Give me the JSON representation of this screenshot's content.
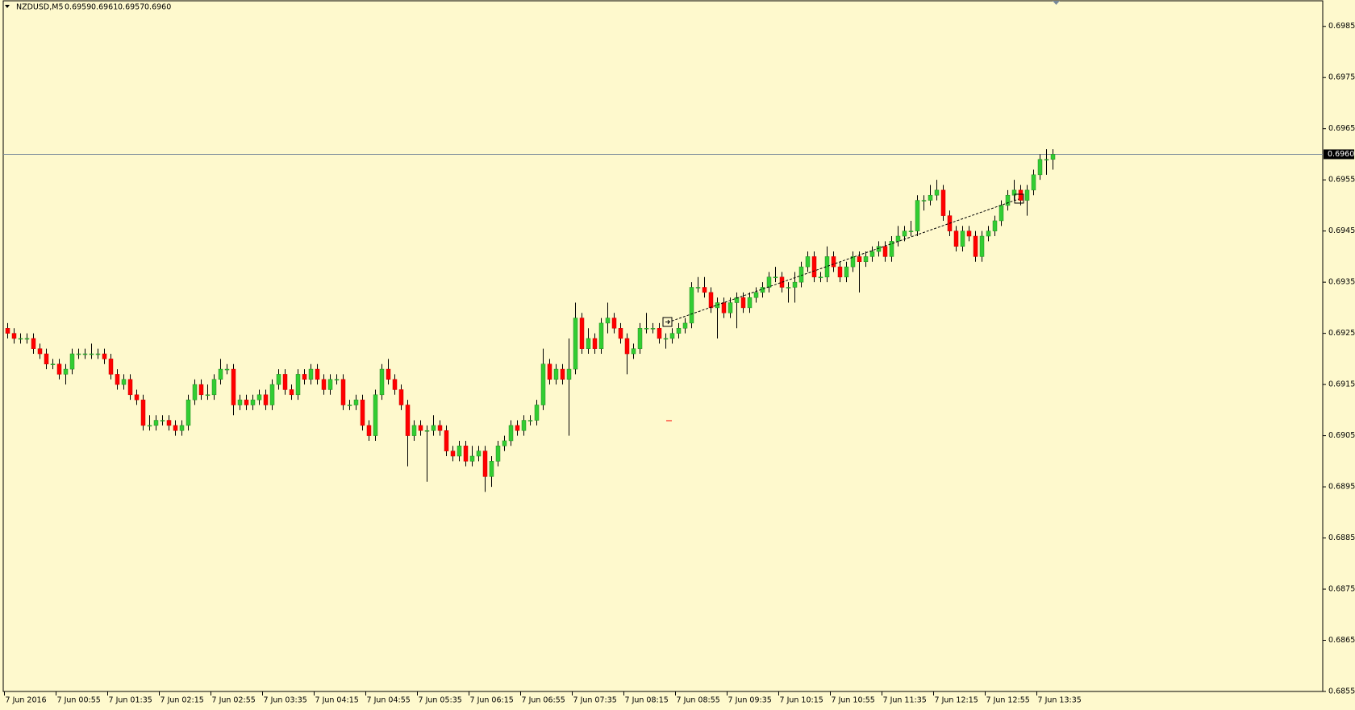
{
  "chart_data": {
    "type": "candlestick",
    "symbol": "NZDUSD,M5",
    "header_values": [
      "0.6959",
      "0.6961",
      "0.6957",
      "0.6960"
    ],
    "last_price": {
      "value": 0.696,
      "label": "0.6960"
    },
    "up_color": "#32cd32",
    "down_color": "#ff0000",
    "ylim": [
      0.6855,
      0.699
    ],
    "yticks": [
      0.6985,
      0.6975,
      0.6965,
      0.6955,
      0.6945,
      0.6935,
      0.6925,
      0.6915,
      0.6905,
      0.6895,
      0.6885,
      0.6875,
      0.6865,
      0.6855
    ],
    "xticks": [
      "7 Jun 2016",
      "7 Jun 00:55",
      "7 Jun 01:35",
      "7 Jun 02:15",
      "7 Jun 02:55",
      "7 Jun 03:35",
      "7 Jun 04:15",
      "7 Jun 04:55",
      "7 Jun 05:35",
      "7 Jun 06:15",
      "7 Jun 06:55",
      "7 Jun 07:35",
      "7 Jun 08:15",
      "7 Jun 08:55",
      "7 Jun 09:35",
      "7 Jun 10:15",
      "7 Jun 10:55",
      "7 Jun 11:35",
      "7 Jun 12:15",
      "7 Jun 12:55",
      "7 Jun 13:35"
    ],
    "candles": [
      [
        0.6926,
        0.6927,
        0.6924,
        0.6925
      ],
      [
        0.6925,
        0.6926,
        0.6923,
        0.6924
      ],
      [
        0.6924,
        0.6925,
        0.6923,
        0.6924
      ],
      [
        0.6924,
        0.6925,
        0.6923,
        0.6924
      ],
      [
        0.6924,
        0.6925,
        0.6921,
        0.6922
      ],
      [
        0.6922,
        0.6923,
        0.692,
        0.6921
      ],
      [
        0.6921,
        0.6922,
        0.6918,
        0.6919
      ],
      [
        0.6919,
        0.692,
        0.6918,
        0.6919
      ],
      [
        0.6919,
        0.692,
        0.6916,
        0.6917
      ],
      [
        0.6917,
        0.6919,
        0.6915,
        0.6918
      ],
      [
        0.6918,
        0.6922,
        0.6917,
        0.6921
      ],
      [
        0.6921,
        0.6922,
        0.692,
        0.6921
      ],
      [
        0.6921,
        0.6922,
        0.692,
        0.6921
      ],
      [
        0.6921,
        0.6923,
        0.692,
        0.6921
      ],
      [
        0.6921,
        0.6922,
        0.692,
        0.6921
      ],
      [
        0.6921,
        0.6922,
        0.6919,
        0.692
      ],
      [
        0.692,
        0.6921,
        0.6916,
        0.6917
      ],
      [
        0.6917,
        0.6918,
        0.6914,
        0.6915
      ],
      [
        0.6915,
        0.6917,
        0.6914,
        0.6916
      ],
      [
        0.6916,
        0.6917,
        0.6912,
        0.6913
      ],
      [
        0.6913,
        0.6914,
        0.6911,
        0.6912
      ],
      [
        0.6912,
        0.6913,
        0.6906,
        0.6907
      ],
      [
        0.6907,
        0.6909,
        0.6906,
        0.6907
      ],
      [
        0.6907,
        0.6909,
        0.6906,
        0.6908
      ],
      [
        0.6908,
        0.6909,
        0.6907,
        0.6908
      ],
      [
        0.6908,
        0.6909,
        0.6906,
        0.6907
      ],
      [
        0.6907,
        0.6908,
        0.6905,
        0.6906
      ],
      [
        0.6906,
        0.6908,
        0.6905,
        0.6907
      ],
      [
        0.6907,
        0.6913,
        0.6906,
        0.6912
      ],
      [
        0.6912,
        0.6916,
        0.6911,
        0.6915
      ],
      [
        0.6915,
        0.6916,
        0.6912,
        0.6913
      ],
      [
        0.6913,
        0.6915,
        0.6912,
        0.6913
      ],
      [
        0.6913,
        0.6917,
        0.6912,
        0.6916
      ],
      [
        0.6916,
        0.692,
        0.6915,
        0.6918
      ],
      [
        0.6918,
        0.6919,
        0.6917,
        0.6918
      ],
      [
        0.6918,
        0.6919,
        0.6909,
        0.6911
      ],
      [
        0.6911,
        0.6913,
        0.691,
        0.6912
      ],
      [
        0.6912,
        0.6913,
        0.691,
        0.6911
      ],
      [
        0.6911,
        0.6913,
        0.691,
        0.6912
      ],
      [
        0.6912,
        0.6914,
        0.6911,
        0.6913
      ],
      [
        0.6913,
        0.6914,
        0.691,
        0.6911
      ],
      [
        0.6911,
        0.6916,
        0.691,
        0.6915
      ],
      [
        0.6915,
        0.6918,
        0.6914,
        0.6917
      ],
      [
        0.6917,
        0.6918,
        0.6913,
        0.6914
      ],
      [
        0.6914,
        0.6915,
        0.6912,
        0.6913
      ],
      [
        0.6913,
        0.6918,
        0.6912,
        0.6917
      ],
      [
        0.6917,
        0.6918,
        0.6915,
        0.6916
      ],
      [
        0.6916,
        0.6919,
        0.6915,
        0.6918
      ],
      [
        0.6918,
        0.6919,
        0.6915,
        0.6916
      ],
      [
        0.6916,
        0.6917,
        0.6913,
        0.6914
      ],
      [
        0.6914,
        0.6917,
        0.6913,
        0.6916
      ],
      [
        0.6916,
        0.6917,
        0.6915,
        0.6916
      ],
      [
        0.6916,
        0.6917,
        0.691,
        0.6911
      ],
      [
        0.6911,
        0.6912,
        0.691,
        0.6911
      ],
      [
        0.6911,
        0.6913,
        0.691,
        0.6912
      ],
      [
        0.6912,
        0.6913,
        0.6906,
        0.6907
      ],
      [
        0.6907,
        0.6908,
        0.6904,
        0.6905
      ],
      [
        0.6905,
        0.6914,
        0.6904,
        0.6913
      ],
      [
        0.6913,
        0.6919,
        0.6912,
        0.6918
      ],
      [
        0.6918,
        0.692,
        0.6915,
        0.6916
      ],
      [
        0.6916,
        0.6917,
        0.6913,
        0.6914
      ],
      [
        0.6914,
        0.6915,
        0.691,
        0.6911
      ],
      [
        0.6911,
        0.6912,
        0.6899,
        0.6905
      ],
      [
        0.6905,
        0.6908,
        0.6904,
        0.6907
      ],
      [
        0.6907,
        0.6908,
        0.6905,
        0.6906
      ],
      [
        0.6906,
        0.6907,
        0.6896,
        0.6906
      ],
      [
        0.6906,
        0.6909,
        0.6905,
        0.6907
      ],
      [
        0.6907,
        0.6908,
        0.6905,
        0.6906
      ],
      [
        0.6906,
        0.6907,
        0.6901,
        0.6902
      ],
      [
        0.6902,
        0.6903,
        0.69,
        0.6901
      ],
      [
        0.6901,
        0.6904,
        0.69,
        0.6903
      ],
      [
        0.6903,
        0.6904,
        0.6899,
        0.69
      ],
      [
        0.69,
        0.6903,
        0.6899,
        0.6901
      ],
      [
        0.6901,
        0.6903,
        0.69,
        0.6902
      ],
      [
        0.6902,
        0.6903,
        0.6894,
        0.6897
      ],
      [
        0.6897,
        0.6901,
        0.6895,
        0.69
      ],
      [
        0.69,
        0.6904,
        0.6899,
        0.6903
      ],
      [
        0.6903,
        0.6905,
        0.6902,
        0.6904
      ],
      [
        0.6904,
        0.6908,
        0.6903,
        0.6907
      ],
      [
        0.6907,
        0.6908,
        0.6905,
        0.6906
      ],
      [
        0.6906,
        0.6909,
        0.6905,
        0.6908
      ],
      [
        0.6908,
        0.6909,
        0.6907,
        0.6908
      ],
      [
        0.6908,
        0.6912,
        0.6907,
        0.6911
      ],
      [
        0.6911,
        0.6922,
        0.691,
        0.6919
      ],
      [
        0.6919,
        0.692,
        0.6915,
        0.6916
      ],
      [
        0.6916,
        0.6919,
        0.6915,
        0.6918
      ],
      [
        0.6918,
        0.6919,
        0.6915,
        0.6916
      ],
      [
        0.6916,
        0.6924,
        0.6905,
        0.6918
      ],
      [
        0.6918,
        0.6931,
        0.6917,
        0.6928
      ],
      [
        0.6928,
        0.6929,
        0.6921,
        0.6922
      ],
      [
        0.6922,
        0.6926,
        0.6921,
        0.6924
      ],
      [
        0.6924,
        0.6925,
        0.6921,
        0.6922
      ],
      [
        0.6922,
        0.6928,
        0.6921,
        0.6927
      ],
      [
        0.6927,
        0.6931,
        0.6925,
        0.6928
      ],
      [
        0.6928,
        0.6929,
        0.6925,
        0.6926
      ],
      [
        0.6926,
        0.6927,
        0.6923,
        0.6924
      ],
      [
        0.6924,
        0.6925,
        0.6917,
        0.6921
      ],
      [
        0.6921,
        0.6923,
        0.692,
        0.6922
      ],
      [
        0.6922,
        0.6927,
        0.6921,
        0.6926
      ],
      [
        0.6926,
        0.6929,
        0.6925,
        0.6926
      ],
      [
        0.6926,
        0.6927,
        0.6925,
        0.6926
      ],
      [
        0.6926,
        0.6927,
        0.6923,
        0.6924
      ],
      [
        0.6924,
        0.6925,
        0.6922,
        0.6924
      ],
      [
        0.6924,
        0.6926,
        0.6923,
        0.6925
      ],
      [
        0.6925,
        0.6927,
        0.6924,
        0.6926
      ],
      [
        0.6926,
        0.6928,
        0.6925,
        0.6927
      ],
      [
        0.6927,
        0.6935,
        0.6926,
        0.6934
      ],
      [
        0.6934,
        0.6936,
        0.6933,
        0.6934
      ],
      [
        0.6934,
        0.6936,
        0.6932,
        0.6933
      ],
      [
        0.6933,
        0.6934,
        0.6929,
        0.693
      ],
      [
        0.693,
        0.6932,
        0.6924,
        0.6931
      ],
      [
        0.6931,
        0.6932,
        0.6928,
        0.6929
      ],
      [
        0.6929,
        0.6932,
        0.6928,
        0.6931
      ],
      [
        0.6931,
        0.6933,
        0.6926,
        0.6932
      ],
      [
        0.6932,
        0.6933,
        0.6929,
        0.693
      ],
      [
        0.693,
        0.6933,
        0.6929,
        0.6932
      ],
      [
        0.6932,
        0.6934,
        0.6931,
        0.6933
      ],
      [
        0.6933,
        0.6935,
        0.6932,
        0.6934
      ],
      [
        0.6934,
        0.6937,
        0.6933,
        0.6936
      ],
      [
        0.6936,
        0.6938,
        0.6935,
        0.6936
      ],
      [
        0.6936,
        0.6937,
        0.6933,
        0.6934
      ],
      [
        0.6934,
        0.6935,
        0.6931,
        0.6934
      ],
      [
        0.6934,
        0.6937,
        0.6931,
        0.6935
      ],
      [
        0.6935,
        0.6939,
        0.6934,
        0.6938
      ],
      [
        0.6938,
        0.6941,
        0.6937,
        0.694
      ],
      [
        0.694,
        0.6941,
        0.6935,
        0.6936
      ],
      [
        0.6936,
        0.6937,
        0.6935,
        0.6936
      ],
      [
        0.6936,
        0.6942,
        0.6935,
        0.694
      ],
      [
        0.694,
        0.6941,
        0.6937,
        0.6938
      ],
      [
        0.6938,
        0.6939,
        0.6935,
        0.6936
      ],
      [
        0.6936,
        0.6939,
        0.6935,
        0.6938
      ],
      [
        0.6938,
        0.6941,
        0.6937,
        0.694
      ],
      [
        0.694,
        0.6941,
        0.6933,
        0.6939
      ],
      [
        0.6939,
        0.6941,
        0.6938,
        0.694
      ],
      [
        0.694,
        0.6942,
        0.6939,
        0.6941
      ],
      [
        0.6941,
        0.6943,
        0.694,
        0.6942
      ],
      [
        0.6942,
        0.6943,
        0.6939,
        0.694
      ],
      [
        0.694,
        0.6944,
        0.6939,
        0.6943
      ],
      [
        0.6943,
        0.6946,
        0.6942,
        0.6944
      ],
      [
        0.6944,
        0.6946,
        0.6943,
        0.6945
      ],
      [
        0.6945,
        0.6947,
        0.6944,
        0.6945
      ],
      [
        0.6945,
        0.6952,
        0.6944,
        0.6951
      ],
      [
        0.6951,
        0.6952,
        0.6949,
        0.6951
      ],
      [
        0.6951,
        0.6954,
        0.695,
        0.6952
      ],
      [
        0.6952,
        0.6955,
        0.6951,
        0.6953
      ],
      [
        0.6953,
        0.6954,
        0.6947,
        0.6948
      ],
      [
        0.6948,
        0.6949,
        0.6944,
        0.6945
      ],
      [
        0.6945,
        0.6946,
        0.6941,
        0.6942
      ],
      [
        0.6942,
        0.6946,
        0.6941,
        0.6945
      ],
      [
        0.6945,
        0.6946,
        0.6943,
        0.6944
      ],
      [
        0.6944,
        0.6945,
        0.6939,
        0.694
      ],
      [
        0.694,
        0.6945,
        0.6939,
        0.6944
      ],
      [
        0.6944,
        0.6946,
        0.6943,
        0.6945
      ],
      [
        0.6945,
        0.6948,
        0.6944,
        0.6947
      ],
      [
        0.6947,
        0.6951,
        0.6946,
        0.695
      ],
      [
        0.695,
        0.6953,
        0.6949,
        0.6952
      ],
      [
        0.6952,
        0.6955,
        0.6951,
        0.6953
      ],
      [
        0.6953,
        0.6954,
        0.695,
        0.6951
      ],
      [
        0.6951,
        0.6954,
        0.6948,
        0.6953
      ],
      [
        0.6953,
        0.6957,
        0.6952,
        0.6956
      ],
      [
        0.6956,
        0.696,
        0.6955,
        0.6959
      ],
      [
        0.6959,
        0.6961,
        0.6956,
        0.6959
      ],
      [
        0.6959,
        0.6961,
        0.6957,
        0.696
      ]
    ]
  }
}
